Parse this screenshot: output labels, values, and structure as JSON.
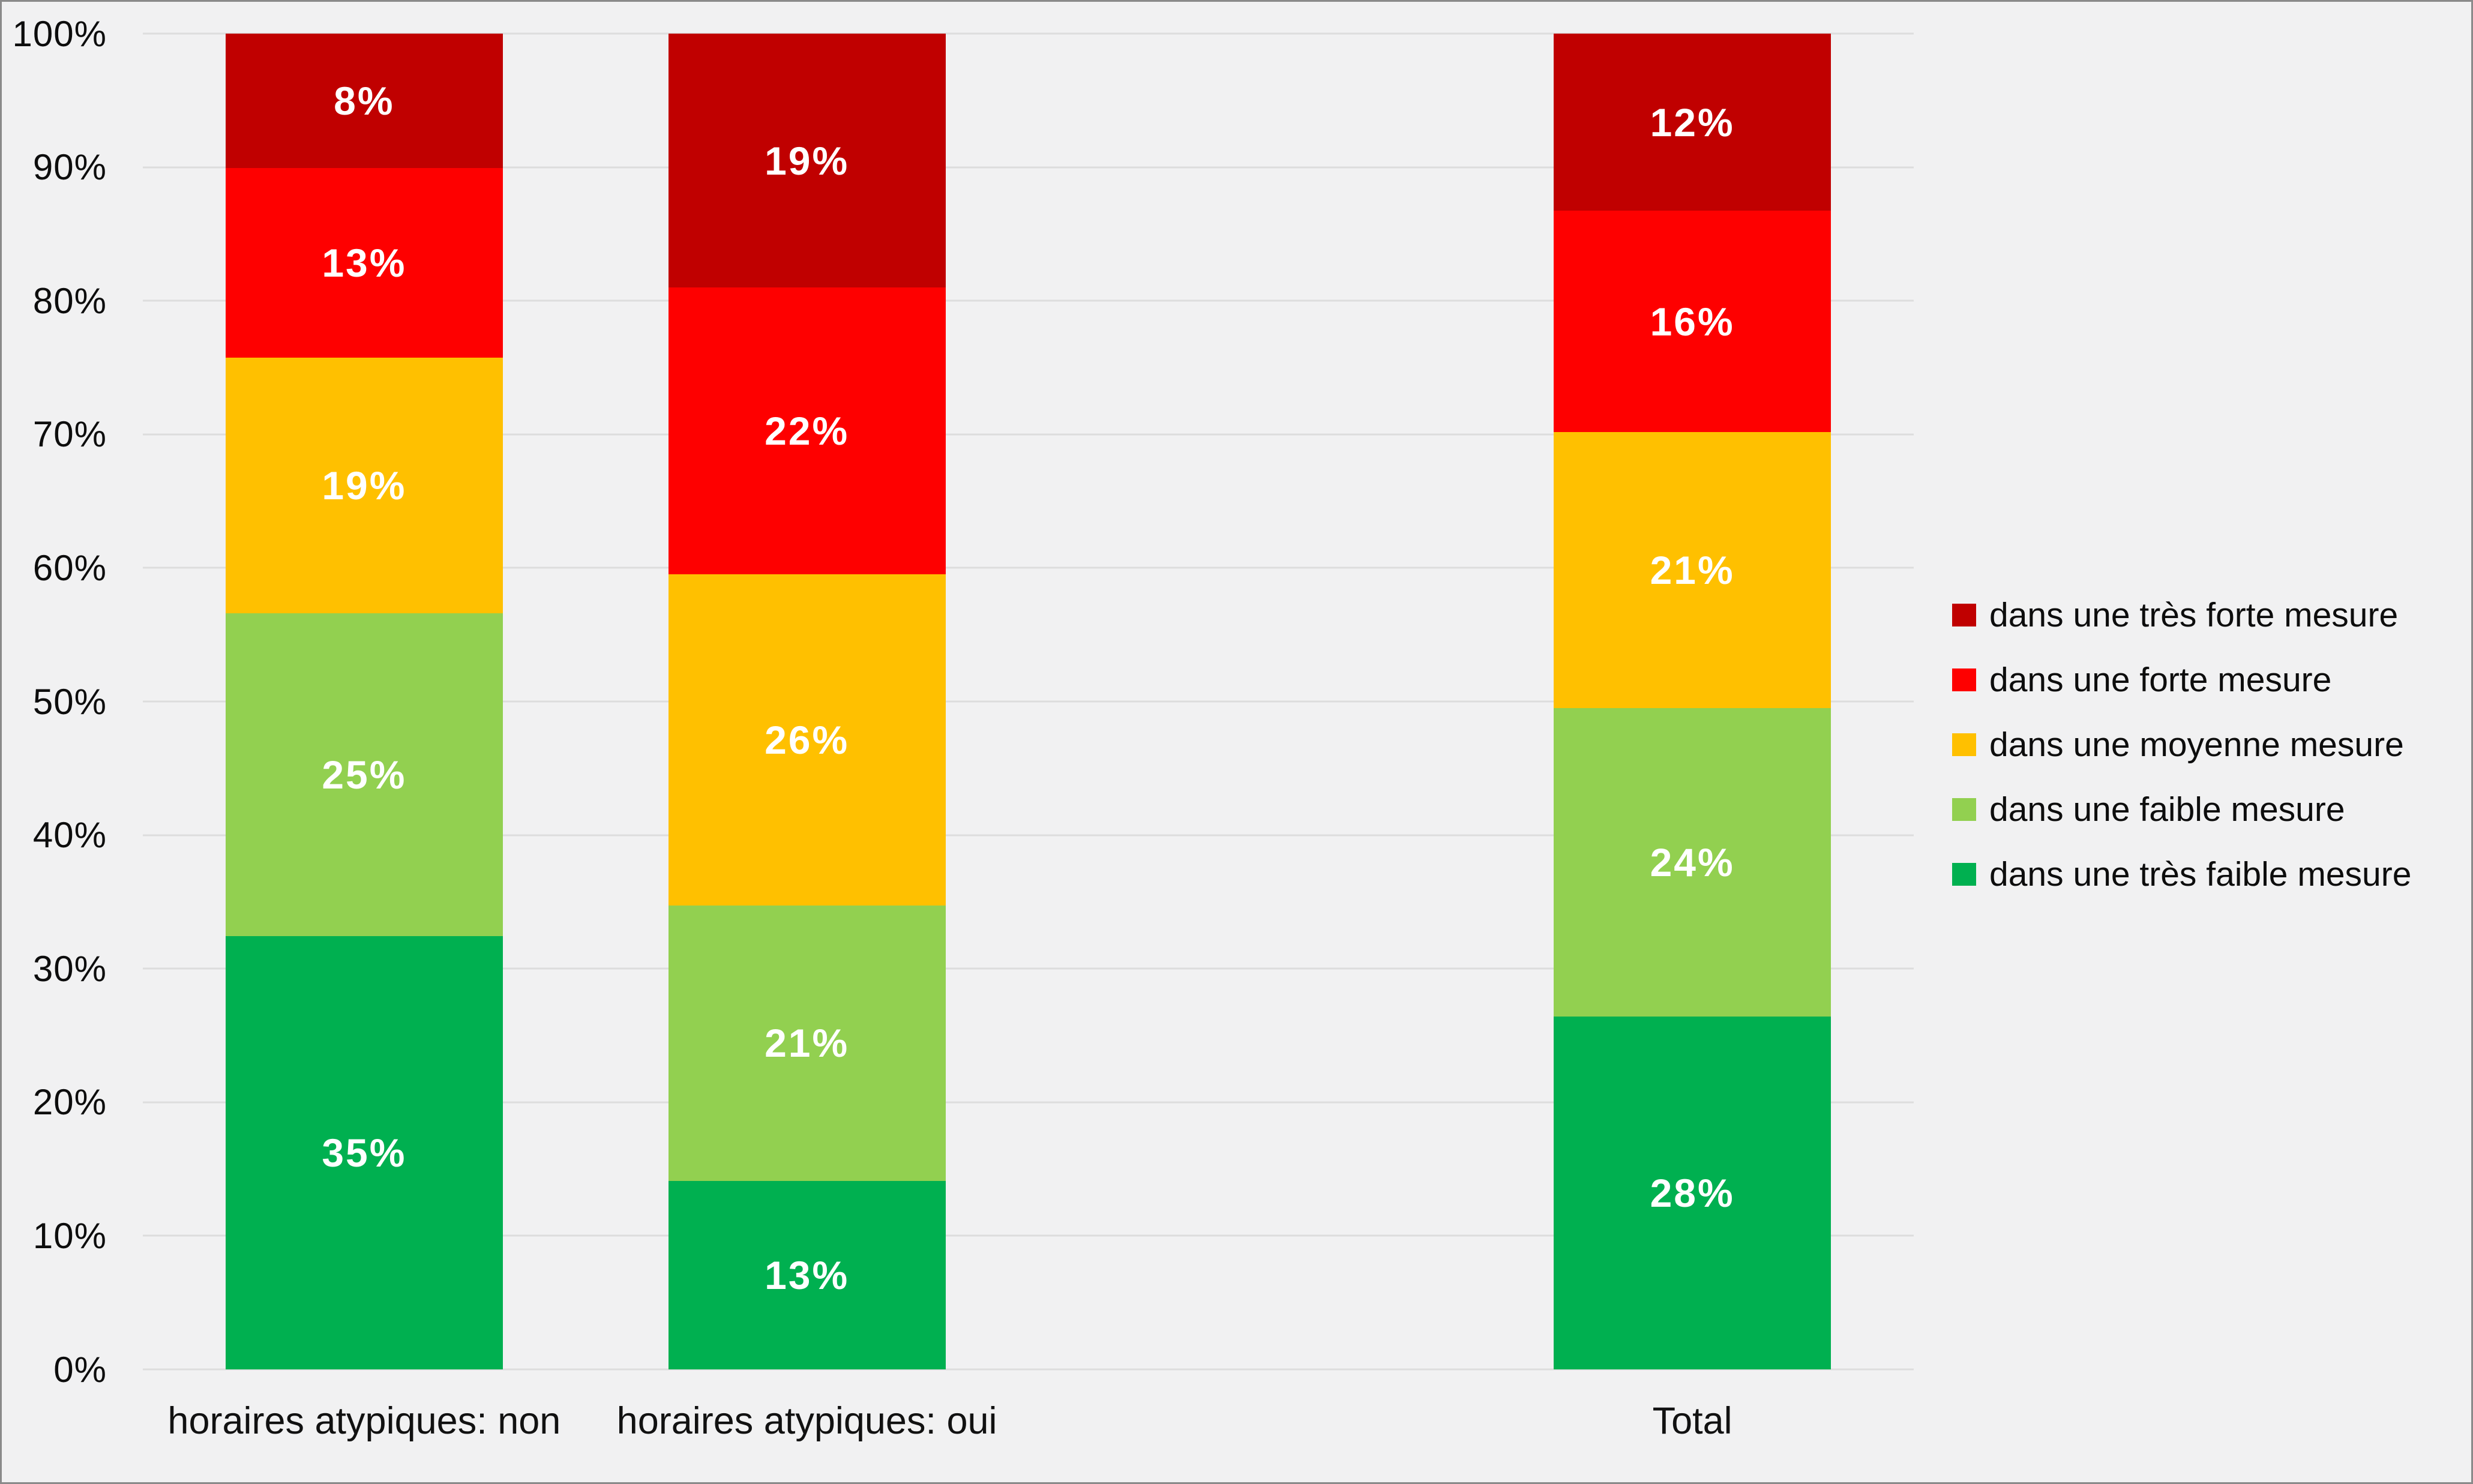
{
  "chart_data": {
    "type": "bar",
    "stacked": true,
    "percent_stacked": true,
    "title": "",
    "xlabel": "",
    "ylabel": "",
    "categories": [
      "horaires atypiques: non",
      "horaires atypiques: oui",
      "Total"
    ],
    "series": [
      {
        "name": "dans une très faible mesure",
        "color": "#00B050",
        "values": [
          35,
          13,
          28
        ],
        "labels": [
          "35%",
          "13%",
          "28%"
        ]
      },
      {
        "name": "dans une faible mesure",
        "color": "#92D050",
        "values": [
          25,
          21,
          24
        ],
        "labels": [
          "25%",
          "21%",
          "24%"
        ]
      },
      {
        "name": "dans une moyenne mesure",
        "color": "#FFC000",
        "values": [
          19,
          26,
          21
        ],
        "labels": [
          "19%",
          "26%",
          "21%"
        ]
      },
      {
        "name": "dans une forte mesure",
        "color": "#FE0000",
        "values": [
          13,
          22,
          16
        ],
        "labels": [
          "13%",
          "22%",
          "16%"
        ]
      },
      {
        "name": "dans une très forte mesure",
        "color": "#C00000",
        "values": [
          8,
          19,
          12
        ],
        "labels": [
          "8%",
          "19%",
          "12%"
        ]
      }
    ],
    "legend_order_top_to_bottom": [
      "dans une très forte mesure",
      "dans une forte mesure",
      "dans une moyenne mesure",
      "dans une faible mesure",
      "dans une très faible mesure"
    ],
    "y_ticks": [
      "0%",
      "10%",
      "20%",
      "30%",
      "40%",
      "50%",
      "60%",
      "70%",
      "80%",
      "90%",
      "100%"
    ],
    "ylim": [
      0,
      100
    ],
    "grid": true,
    "legend_position": "right",
    "slots": {
      "count": 4,
      "category_slot_indices": [
        0,
        1,
        3
      ]
    }
  },
  "colors": {
    "background": "#F1F1F2",
    "frame_border": "#8A8A8A",
    "gridline": "#DDDDDD",
    "data_label_text": "#FFFFFF",
    "axis_text": "#0D0D0D"
  }
}
